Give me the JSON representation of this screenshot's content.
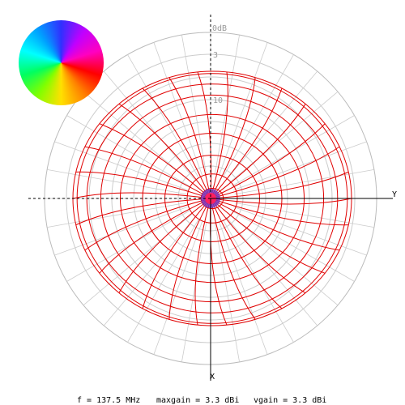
{
  "plot": {
    "ring_labels": [
      "0dB",
      "3",
      "10"
    ],
    "axis_labels": {
      "y": "Y",
      "x": "X"
    }
  },
  "footer": {
    "frequency": "f = 137.5 MHz",
    "maxgain": "maxgain = 3.3 dBi",
    "vgain": "vgain = 3.3 dBi"
  }
}
